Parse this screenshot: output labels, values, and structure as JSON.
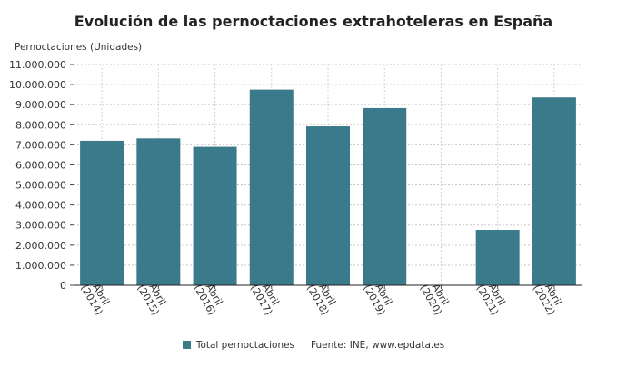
{
  "chart_data": {
    "type": "bar",
    "title": "Evolución de las pernoctaciones extrahoteleras en España",
    "ylabel": "Pernoctaciones (Unidades)",
    "xlabel": "",
    "categories": [
      "Abril (2014)",
      "Abril (2015)",
      "Abril (2016)",
      "Abril (2017)",
      "Abril (2018)",
      "Abril (2019)",
      "Abril (2020)",
      "Abril (2021)",
      "Abril (2022)"
    ],
    "category_lines": [
      [
        "Abril",
        "(2014)"
      ],
      [
        "Abril",
        "(2015)"
      ],
      [
        "Abril",
        "(2016)"
      ],
      [
        "Abril",
        "(2017)"
      ],
      [
        "Abril",
        "(2018)"
      ],
      [
        "Abril",
        "(2019)"
      ],
      [
        "Abril",
        "(2020)"
      ],
      [
        "Abril",
        "(2021)"
      ],
      [
        "Abril",
        "(2022)"
      ]
    ],
    "series": [
      {
        "name": "Total pernoctaciones",
        "values": [
          7200000,
          7320000,
          6900000,
          9750000,
          7920000,
          8830000,
          0,
          2760000,
          9360000
        ]
      }
    ],
    "ylim": [
      0,
      11000000
    ],
    "yticks": [
      0,
      1000000,
      2000000,
      3000000,
      4000000,
      5000000,
      6000000,
      7000000,
      8000000,
      9000000,
      10000000,
      11000000
    ],
    "ytick_labels": [
      "0",
      "1.000.000",
      "2.000.000",
      "3.000.000",
      "4.000.000",
      "5.000.000",
      "6.000.000",
      "7.000.000",
      "8.000.000",
      "9.000.000",
      "10.000.000",
      "11.000.000"
    ],
    "grid": true,
    "legend_position": "bottom",
    "bar_color": "#3b7a8a",
    "source": "Fuente: INE, www.epdata.es"
  }
}
